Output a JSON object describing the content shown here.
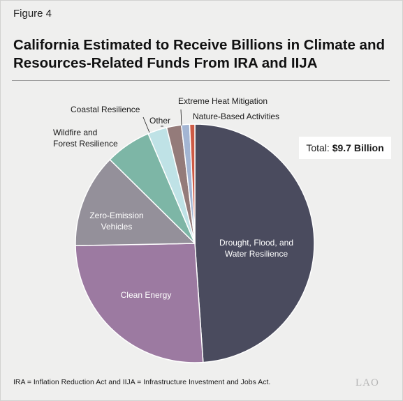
{
  "figure_label": "Figure 4",
  "title_line1": "California Estimated to Receive Billions in Climate and",
  "title_line2": "Resources-Related Funds From IRA and IIJA",
  "total": {
    "prefix": "Total: ",
    "value": "$9.7 Billion"
  },
  "note": "IRA = Inflation Reduction Act and IIJA = Infrastructure Investment and Jobs Act.",
  "logo": "LAO",
  "chart_data": {
    "type": "pie",
    "title": "California Estimated to Receive Billions in Climate and Resources-Related Funds From IRA and IIJA",
    "start_angle_deg": 0,
    "direction": "clockwise",
    "slices": [
      {
        "label": "Drought, Flood, and Water Resilience",
        "lines": [
          "Drought, Flood, and",
          "Water Resilience"
        ],
        "share": 0.489,
        "color": "#4a4b5e"
      },
      {
        "label": "Clean Energy",
        "lines": [
          "Clean Energy"
        ],
        "share": 0.258,
        "color": "#9c7aa1"
      },
      {
        "label": "Zero-Emission Vehicles",
        "lines": [
          "Zero-Emission",
          "Vehicles"
        ],
        "share": 0.127,
        "color": "#94909a"
      },
      {
        "label": "Wildfire and Forest Resilience",
        "lines": [
          "Wildfire and",
          "Forest Resilience"
        ],
        "share": 0.062,
        "color": "#7db6a6"
      },
      {
        "label": "Coastal Resilience",
        "lines": [
          "Coastal Resilience"
        ],
        "share": 0.026,
        "color": "#bfe2e6"
      },
      {
        "label": "Other",
        "lines": [
          "Other"
        ],
        "share": 0.02,
        "color": "#947b7a"
      },
      {
        "label": "Extreme Heat Mitigation",
        "lines": [
          "Extreme Heat Mitigation"
        ],
        "share": 0.011,
        "color": "#a3b5d3"
      },
      {
        "label": "Nature-Based Activities",
        "lines": [
          "Nature-Based Activities"
        ],
        "share": 0.007,
        "color": "#cd5a45"
      }
    ]
  }
}
